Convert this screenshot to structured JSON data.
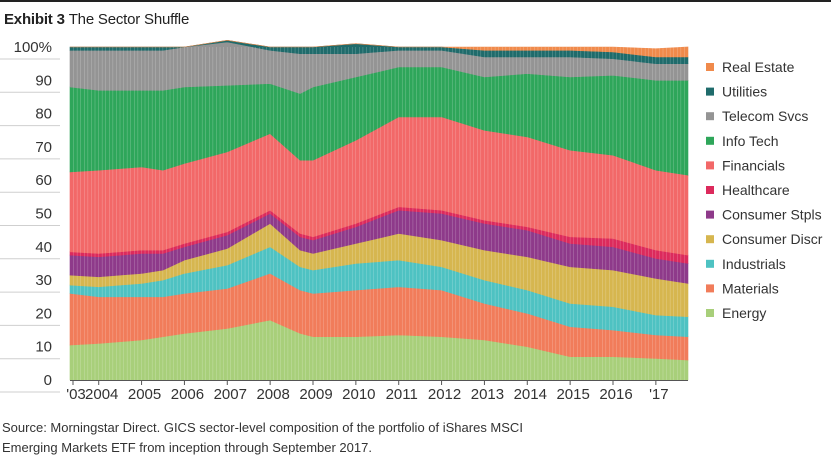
{
  "title": {
    "exhibit": "Exhibit 3",
    "text": "The Sector Shuffle"
  },
  "source": {
    "line1": "Source: Morningstar Direct. GICS sector-level composition of the portfolio of iShares MSCI",
    "line2": "Emerging Markets ETF from inception through September 2017."
  },
  "chart_data": {
    "type": "area",
    "stacked": "100%",
    "title": "The Sector Shuffle",
    "ylim": [
      0,
      100
    ],
    "yticks": [
      "0",
      "10",
      "20",
      "30",
      "40",
      "50",
      "60",
      "70",
      "80",
      "90",
      "100%"
    ],
    "xticks": [
      "'03",
      "2004",
      "2005",
      "2006",
      "2007",
      "2008",
      "2009",
      "2010",
      "2011",
      "2012",
      "2013",
      "2014",
      "2015",
      "2016",
      "'17"
    ],
    "x": [
      2003.33,
      2004.0,
      2005.0,
      2005.5,
      2006.0,
      2007.0,
      2008.0,
      2008.7,
      2009.0,
      2010.0,
      2011.0,
      2012.0,
      2013.0,
      2014.0,
      2015.0,
      2016.0,
      2017.0,
      2017.75
    ],
    "legend_position": "right",
    "series": [
      {
        "name": "Energy",
        "color": "#a8cf7a",
        "values": [
          10.5,
          11,
          12,
          13,
          14,
          15.5,
          18,
          14,
          13,
          13,
          13.5,
          13,
          12,
          10,
          7,
          7,
          6.5,
          6
        ]
      },
      {
        "name": "Materials",
        "color": "#f17c5a",
        "values": [
          15.5,
          14,
          13,
          12,
          12,
          12,
          14,
          13,
          13,
          14,
          14.5,
          14,
          11,
          10,
          9,
          8,
          7,
          7
        ]
      },
      {
        "name": "Industrials",
        "color": "#4ec2c2",
        "values": [
          2.5,
          3,
          4,
          5,
          6,
          7,
          8,
          7,
          7,
          8,
          8,
          7,
          7,
          7,
          7,
          7,
          6,
          6
        ]
      },
      {
        "name": "Consumer Discr",
        "color": "#d6b64f",
        "values": [
          3,
          3,
          3,
          3,
          4,
          5,
          7,
          5,
          5,
          6,
          8,
          8,
          9,
          10,
          11,
          11,
          11,
          10
        ]
      },
      {
        "name": "Consumer Stpls",
        "color": "#8e3a8a",
        "values": [
          6,
          6,
          6,
          5,
          4,
          4,
          3,
          4,
          4,
          5,
          7,
          8,
          8,
          8,
          7,
          7,
          6,
          6
        ]
      },
      {
        "name": "Healthcare",
        "color": "#dc2a5c",
        "values": [
          1,
          1,
          1,
          1,
          1,
          1,
          1,
          1,
          1,
          1,
          1,
          1,
          1,
          1,
          2,
          2.5,
          2.5,
          2.5
        ]
      },
      {
        "name": "Financials",
        "color": "#f26868",
        "values": [
          24,
          25,
          25,
          24,
          24,
          24,
          23,
          22,
          23,
          25,
          27,
          28,
          27,
          27,
          26,
          25,
          24,
          24
        ]
      },
      {
        "name": "Info Tech",
        "color": "#2ea65a",
        "values": [
          25.5,
          24,
          23,
          24,
          23,
          20,
          15,
          20,
          22,
          19,
          15,
          15,
          16,
          19,
          22,
          24,
          27,
          28.5
        ]
      },
      {
        "name": "Telecom Svcs",
        "color": "#949494",
        "values": [
          11,
          12,
          12,
          12,
          12,
          13,
          10,
          12,
          10,
          7,
          5,
          5,
          6,
          5,
          6,
          5,
          5,
          5
        ]
      },
      {
        "name": "Utilities",
        "color": "#1f6b6b",
        "values": [
          1,
          1,
          1,
          1,
          0,
          0.5,
          1,
          2,
          2,
          3,
          1,
          1,
          2,
          2,
          2,
          2,
          2,
          2
        ]
      },
      {
        "name": "Real Estate",
        "color": "#f08a4b",
        "values": [
          0,
          0,
          0,
          0,
          0,
          0,
          0,
          0,
          0,
          0,
          0,
          0,
          1,
          1,
          1,
          1.5,
          2.5,
          3
        ]
      }
    ]
  }
}
